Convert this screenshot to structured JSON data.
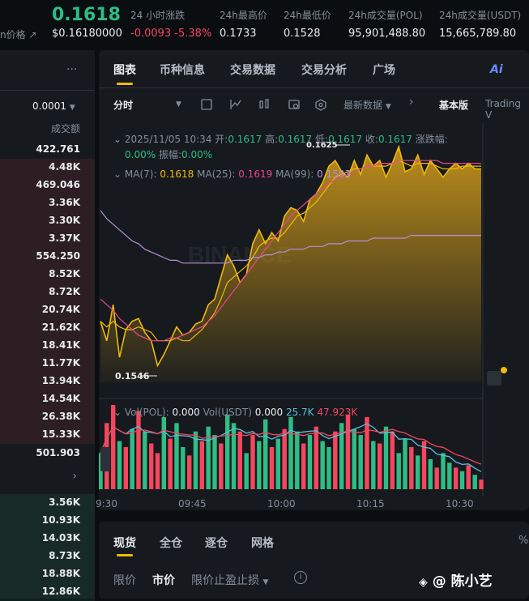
{
  "header": {
    "price": "0.1618",
    "usd_price": "$0.16180000",
    "index_label": "n价格 ↗",
    "stats": [
      {
        "label": "24 小时涨跌",
        "value": "-0.0093 -5.38%"
      },
      {
        "label": "24h最高价",
        "value": "0.1733"
      },
      {
        "label": "24h最低价",
        "value": "0.1528"
      },
      {
        "label": "24h成交量(POL)",
        "value": "95,901,488.80"
      },
      {
        "label": "24h成交量(USDT)",
        "value": "15,665,789.80"
      }
    ]
  },
  "orderbook": {
    "more": "···",
    "precision": "0.0001",
    "col_label": "成交额",
    "asks": [
      "422.761",
      "4.48K",
      "469.046",
      "3.36K",
      "3.30K",
      "3.37K",
      "554.250",
      "8.52K",
      "8.72K",
      "20.74K",
      "21.62K",
      "18.41K",
      "11.77K",
      "13.94K",
      "14.54K",
      "26.38K",
      "15.33K"
    ],
    "mid": "501.903",
    "bids": [
      "3.56K",
      "10.93K",
      "14.03K",
      "8.73K",
      "18.88K",
      "12.86K"
    ]
  },
  "tabs": [
    "图表",
    "币种信息",
    "交易数据",
    "交易分析",
    "广场"
  ],
  "ai_label": "Ai",
  "toolbar": {
    "interval": "分时",
    "latest": "最新数据",
    "basic": "基本版",
    "tv": "Trading V"
  },
  "ohlc": {
    "date": "2025/11/05 10:34",
    "open_l": "开:",
    "open": "0.1617",
    "high_l": "高:",
    "high": "0.1617",
    "low_l": "低:",
    "low": "0.1617",
    "close_l": "收:",
    "close": "0.1617",
    "chg_l": "涨跌幅:",
    "chg": "0.00%",
    "amp_l": "振幅:",
    "amp": "0.00%"
  },
  "ma": {
    "ma7_l": "MA(7):",
    "ma7": "0.1618",
    "ma25_l": "MA(25):",
    "ma25": "0.1619",
    "ma99_l": "MA(99):",
    "ma99": "0.1593"
  },
  "markers": {
    "high": "0.1625",
    "low": "0.1546"
  },
  "volume": {
    "pol_l": "Vol(POL):",
    "pol": "0.000",
    "usdt_l": "Vol(USDT)",
    "usdt": "0.000",
    "ma1": "25.7K",
    "ma2": "47.923K"
  },
  "xaxis": [
    "9:30",
    "09:45",
    "10:00",
    "10:15",
    "10:30"
  ],
  "watermark": "BINANCE",
  "bottom": {
    "tabs": [
      "现货",
      "全仓",
      "逐仓",
      "网格"
    ],
    "order_types": [
      "限价",
      "市价",
      "限价止盈止损"
    ],
    "percent": "%"
  },
  "author": "@ 陈小艺",
  "colors": {
    "up": "#2ebd85",
    "down": "#f6465d",
    "accent": "#f0b90b",
    "ma25": "#e8468f",
    "ma99": "#b58fd6"
  },
  "chart_data": {
    "type": "area",
    "price_x": [
      0,
      1,
      2,
      3,
      4,
      5,
      6,
      7,
      8,
      9,
      10,
      11,
      12,
      13,
      14,
      15,
      16,
      17,
      18,
      19,
      20,
      21,
      22,
      23,
      24,
      25,
      26,
      27,
      28,
      29,
      30,
      31,
      32,
      33,
      34,
      35,
      36,
      37,
      38,
      39,
      40,
      41,
      42,
      43,
      44,
      45,
      46,
      47,
      48,
      49,
      50,
      51,
      52,
      53,
      54,
      55,
      56,
      57,
      58,
      59,
      60
    ],
    "price": [
      0.1562,
      0.1555,
      0.1568,
      0.1549,
      0.1559,
      0.1562,
      0.1563,
      0.1558,
      0.1555,
      0.1546,
      0.155,
      0.1555,
      0.156,
      0.1557,
      0.1558,
      0.1561,
      0.1562,
      0.1568,
      0.157,
      0.1578,
      0.1586,
      0.1582,
      0.1576,
      0.1579,
      0.159,
      0.1595,
      0.159,
      0.1594,
      0.1591,
      0.16,
      0.1603,
      0.1602,
      0.1598,
      0.1606,
      0.1608,
      0.1612,
      0.1618,
      0.162,
      0.1616,
      0.1614,
      0.162,
      0.1615,
      0.1622,
      0.1618,
      0.162,
      0.1614,
      0.1619,
      0.1625,
      0.1616,
      0.1617,
      0.1622,
      0.1615,
      0.162,
      0.1617,
      0.1614,
      0.1617,
      0.1619,
      0.1617,
      0.1619,
      0.1617,
      0.1617
    ],
    "ma7": [
      0.1562,
      0.156,
      0.1562,
      0.156,
      0.1559,
      0.1559,
      0.156,
      0.1559,
      0.1558,
      0.1555,
      0.1555,
      0.1555,
      0.1556,
      0.1555,
      0.1555,
      0.1557,
      0.1559,
      0.1562,
      0.1565,
      0.157,
      0.1576,
      0.1578,
      0.158,
      0.1582,
      0.1585,
      0.1589,
      0.1591,
      0.1592,
      0.1592,
      0.1594,
      0.1597,
      0.16,
      0.1601,
      0.1603,
      0.1605,
      0.1608,
      0.1611,
      0.1614,
      0.1615,
      0.1616,
      0.1617,
      0.1617,
      0.1618,
      0.1618,
      0.1618,
      0.1618,
      0.1619,
      0.162,
      0.1619,
      0.1618,
      0.1619,
      0.1619,
      0.1619,
      0.1618,
      0.1617,
      0.1617,
      0.1617,
      0.1618,
      0.1618,
      0.1618,
      0.1618
    ],
    "ma25": [
      0.157,
      0.1568,
      0.1566,
      0.1563,
      0.1561,
      0.1559,
      0.1557,
      0.1556,
      0.1555,
      0.1555,
      0.1555,
      0.1556,
      0.1556,
      0.1557,
      0.1558,
      0.1559,
      0.156,
      0.1562,
      0.1564,
      0.1567,
      0.157,
      0.1573,
      0.1576,
      0.1579,
      0.1582,
      0.1585,
      0.1588,
      0.1591,
      0.1594,
      0.1597,
      0.16,
      0.1602,
      0.1604,
      0.1606,
      0.1608,
      0.161,
      0.1612,
      0.1613,
      0.1614,
      0.1615,
      0.1616,
      0.1617,
      0.1618,
      0.1618,
      0.1619,
      0.1619,
      0.1619,
      0.162,
      0.162,
      0.162,
      0.162,
      0.162,
      0.162,
      0.162,
      0.1619,
      0.1619,
      0.1619,
      0.1619,
      0.1619,
      0.1619,
      0.1619
    ],
    "ma99": [
      0.1602,
      0.1599,
      0.1597,
      0.1595,
      0.1593,
      0.1591,
      0.159,
      0.1588,
      0.1587,
      0.1586,
      0.1585,
      0.1584,
      0.1584,
      0.1583,
      0.1583,
      0.1583,
      0.1583,
      0.1583,
      0.1583,
      0.1583,
      0.1583,
      0.1584,
      0.1584,
      0.1584,
      0.1585,
      0.1585,
      0.1586,
      0.1586,
      0.1587,
      0.1587,
      0.1588,
      0.1588,
      0.1588,
      0.1589,
      0.1589,
      0.1589,
      0.159,
      0.159,
      0.159,
      0.1591,
      0.1591,
      0.1591,
      0.1591,
      0.1592,
      0.1592,
      0.1592,
      0.1592,
      0.1592,
      0.1592,
      0.1593,
      0.1593,
      0.1593,
      0.1593,
      0.1593,
      0.1593,
      0.1593,
      0.1593,
      0.1593,
      0.1593,
      0.1593,
      0.1593
    ],
    "volume": [
      30,
      55,
      70,
      40,
      35,
      50,
      65,
      48,
      38,
      30,
      60,
      42,
      55,
      35,
      28,
      48,
      40,
      52,
      45,
      38,
      62,
      55,
      48,
      30,
      45,
      40,
      58,
      35,
      42,
      50,
      60,
      48,
      38,
      45,
      52,
      40,
      35,
      48,
      55,
      62,
      50,
      45,
      60,
      40,
      38,
      52,
      48,
      30,
      42,
      35,
      28,
      40,
      25,
      18,
      30,
      22,
      18,
      15,
      20,
      12,
      8
    ],
    "volume_up": [
      1,
      0,
      0,
      1,
      0,
      1,
      0,
      1,
      0,
      0,
      1,
      0,
      1,
      1,
      0,
      1,
      0,
      1,
      1,
      0,
      1,
      1,
      0,
      1,
      0,
      1,
      1,
      0,
      1,
      0,
      1,
      1,
      0,
      1,
      0,
      1,
      1,
      0,
      1,
      0,
      1,
      1,
      0,
      1,
      0,
      1,
      0,
      1,
      1,
      0,
      1,
      0,
      1,
      0,
      1,
      1,
      0,
      1,
      0,
      1,
      0
    ],
    "ylim": [
      0.154,
      0.163
    ]
  }
}
